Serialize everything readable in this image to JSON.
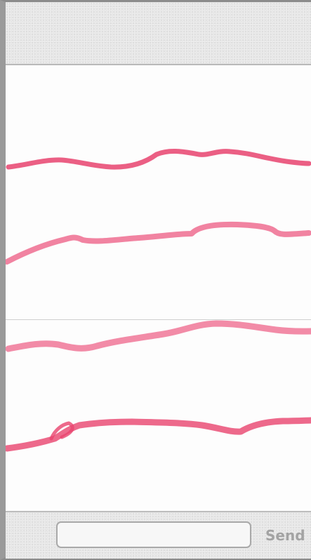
{
  "colors": {
    "stroke": "#e8436e",
    "toolbar_bg": "#ececec",
    "send_text": "#a3a3a3"
  },
  "composer": {
    "input_value": "",
    "input_placeholder": "",
    "send_label": "Send"
  }
}
